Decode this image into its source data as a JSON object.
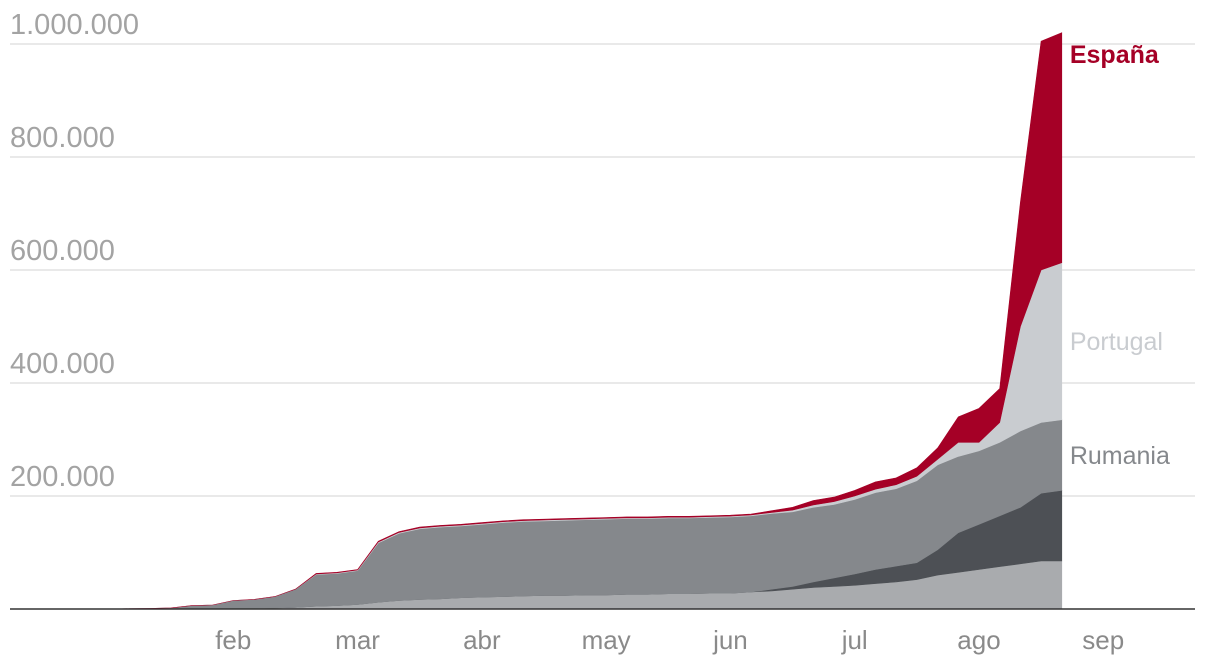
{
  "chart_data": {
    "type": "stacked-area",
    "categories": [
      null,
      null,
      null,
      null,
      null,
      null,
      "feb",
      null,
      null,
      null,
      null,
      null,
      "mar",
      null,
      null,
      null,
      null,
      null,
      "abr",
      null,
      null,
      null,
      null,
      null,
      "may",
      null,
      null,
      null,
      null,
      null,
      "jun",
      null,
      null,
      null,
      null,
      null,
      "jul",
      null,
      null,
      null,
      null,
      null,
      "ago",
      null,
      null,
      null,
      null,
      null,
      "sep"
    ],
    "series": [
      {
        "color": "#a9abae",
        "values": [
          0,
          0,
          0,
          0,
          0,
          0,
          1000,
          1000,
          2000,
          3000,
          5000,
          6000,
          8000,
          12000,
          15000,
          17000,
          18000,
          20000,
          21000,
          22000,
          23000,
          24000,
          24000,
          25000,
          25000,
          26000,
          26000,
          27000,
          27000,
          28000,
          28000,
          30000,
          32000,
          35000,
          38000,
          40000,
          42000,
          45000,
          48000,
          52000,
          60000,
          65000,
          70000,
          75000,
          80000,
          85000,
          85000,
          null,
          null
        ]
      },
      {
        "color": "#4d5055",
        "values": [
          0,
          0,
          0,
          0,
          0,
          0,
          0,
          0,
          0,
          0,
          0,
          0,
          0,
          0,
          0,
          0,
          0,
          0,
          0,
          0,
          0,
          0,
          0,
          0,
          0,
          0,
          0,
          0,
          0,
          0,
          0,
          0,
          3000,
          5000,
          10000,
          15000,
          20000,
          25000,
          28000,
          30000,
          45000,
          70000,
          80000,
          90000,
          100000,
          120000,
          125000,
          null,
          null
        ]
      },
      {
        "name": "Rumania",
        "color": "#85888c",
        "values": [
          0,
          500,
          1000,
          2000,
          6000,
          7000,
          14000,
          16000,
          20000,
          32000,
          56000,
          57000,
          60000,
          105000,
          119000,
          125000,
          127000,
          127000,
          129000,
          131000,
          132000,
          132000,
          133000,
          133000,
          134000,
          134000,
          134000,
          134000,
          134000,
          134000,
          135000,
          135000,
          134000,
          132000,
          132000,
          130000,
          132000,
          136000,
          137000,
          145000,
          150000,
          135000,
          130000,
          130000,
          135000,
          125000,
          125000,
          null,
          null
        ]
      },
      {
        "name": "Portugal",
        "color": "#c9ccd0",
        "values": [
          0,
          0,
          0,
          0,
          0,
          0,
          0,
          0,
          0,
          0,
          1000,
          1000,
          1000,
          1500,
          1500,
          1500,
          1500,
          1500,
          1500,
          1500,
          1500,
          1500,
          1500,
          1500,
          1500,
          1500,
          1500,
          1500,
          1500,
          1500,
          1500,
          1500,
          2000,
          3000,
          4000,
          5000,
          6000,
          6000,
          7000,
          8000,
          10000,
          25000,
          15000,
          35000,
          185000,
          270000,
          278000,
          null,
          null
        ]
      },
      {
        "name": "España",
        "color": "#a50026",
        "values": [
          0,
          0,
          0,
          0,
          0,
          0,
          0,
          0,
          0,
          0,
          1000,
          1000,
          1000,
          1500,
          1500,
          1500,
          1500,
          1500,
          1500,
          1500,
          1500,
          1500,
          1500,
          1500,
          1500,
          1500,
          1500,
          1500,
          1500,
          1500,
          1500,
          1500,
          3000,
          5000,
          8000,
          8000,
          10000,
          13000,
          12000,
          15000,
          20000,
          45000,
          60000,
          60000,
          220000,
          405000,
          407000,
          null,
          null
        ]
      }
    ],
    "ylim": [
      0,
      1000000
    ],
    "yticks": [
      {
        "value": 200000,
        "label": "200.000"
      },
      {
        "value": 400000,
        "label": "400.000"
      },
      {
        "value": 600000,
        "label": "600.000"
      },
      {
        "value": 800000,
        "label": "800.000"
      },
      {
        "value": 1000000,
        "label": "1.000.000"
      }
    ],
    "grid": true
  }
}
